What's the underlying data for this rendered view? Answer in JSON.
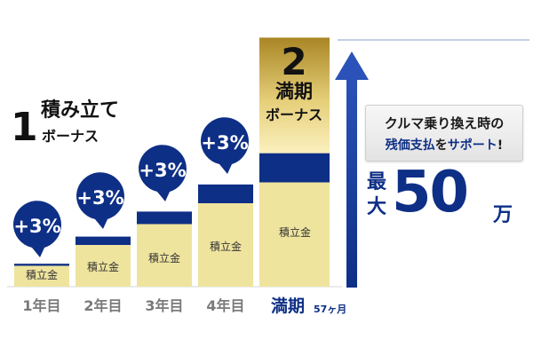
{
  "chart_data": {
    "type": "bar",
    "categories": [
      "1年目",
      "2年目",
      "3年目",
      "4年目",
      "満期"
    ],
    "final_period_note": "57ヶ月",
    "bars": [
      {
        "deposit_label": "積立金",
        "bonus_label": "+3%"
      },
      {
        "deposit_label": "積立金",
        "bonus_label": "+3%"
      },
      {
        "deposit_label": "積立金",
        "bonus_label": "+3%"
      },
      {
        "deposit_label": "積立金",
        "bonus_label": "+3%"
      },
      {
        "deposit_label": "積立金"
      }
    ],
    "deposit_values": [
      1,
      2,
      3,
      4,
      5
    ],
    "bonus_values": [
      0.1,
      0.4,
      0.6,
      0.9,
      1.4
    ],
    "maturity_bonus_value": 1.4
  },
  "legend": {
    "item1": {
      "number": "1",
      "title": "積み立て",
      "subtitle": "ボーナス"
    },
    "item2": {
      "number": "2",
      "title": "満期",
      "subtitle": "ボーナス"
    }
  },
  "callout": {
    "line1": "クルマ乗り換え時の",
    "line2_a": "残価支払",
    "line2_b": "を",
    "line2_c": "サポート",
    "line2_d": "!"
  },
  "max": {
    "label": "最大",
    "number": "50",
    "unit": "万"
  },
  "colors": {
    "navy": "#0e2f86",
    "deposit": "#efe49e",
    "gold_top": "#a98625",
    "gold_light": "#fbf0be",
    "label_gray": "#7a7a7a"
  }
}
